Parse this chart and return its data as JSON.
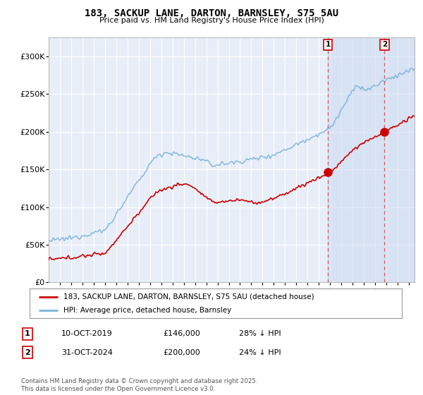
{
  "title": "183, SACKUP LANE, DARTON, BARNSLEY, S75 5AU",
  "subtitle": "Price paid vs. HM Land Registry's House Price Index (HPI)",
  "background_color": "#ffffff",
  "plot_bg_color": "#e8eef8",
  "grid_color": "#ffffff",
  "hpi_color": "#7ab3d9",
  "price_color": "#cc0000",
  "dashed_line_color": "#cc0000",
  "sale1_date": "10-OCT-2019",
  "sale1_price": 146000,
  "sale1_pct": "28% ↓ HPI",
  "sale2_date": "31-OCT-2024",
  "sale2_price": 200000,
  "sale2_pct": "24% ↓ HPI",
  "legend_label1": "183, SACKUP LANE, DARTON, BARNSLEY, S75 5AU (detached house)",
  "legend_label2": "HPI: Average price, detached house, Barnsley",
  "footnote": "Contains HM Land Registry data © Crown copyright and database right 2025.\nThis data is licensed under the Open Government Licence v3.0.",
  "ylim": [
    0,
    325000
  ],
  "yticks": [
    0,
    50000,
    100000,
    150000,
    200000,
    250000,
    300000
  ],
  "ytick_labels": [
    "£0",
    "£50K",
    "£100K",
    "£150K",
    "£200K",
    "£250K",
    "£300K"
  ],
  "shade_color": "#c8d8f0",
  "shade_alpha": 0.5
}
